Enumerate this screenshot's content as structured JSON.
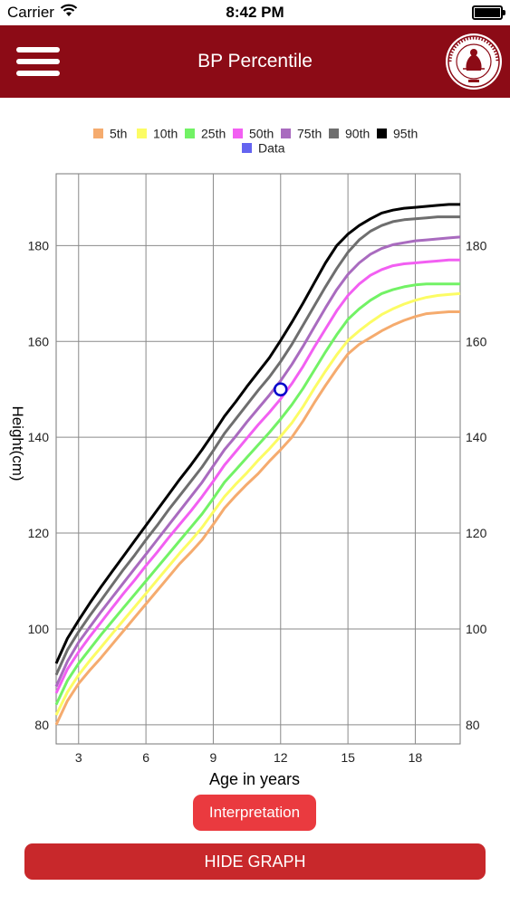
{
  "status_bar": {
    "carrier": "Carrier",
    "time": "8:42 PM"
  },
  "nav": {
    "title": "BP Percentile",
    "menu_icon": "hamburger-menu-icon",
    "logo": "philippine-pediatric-society-seal"
  },
  "colors": {
    "nav_bg": "#8c0b16",
    "interp_btn": "#ea3a3f",
    "hide_btn": "#c8282b"
  },
  "chart_data": {
    "type": "line",
    "title": "",
    "xlabel": "Age in years",
    "ylabel": "Height(cm)",
    "xlim": [
      2,
      20
    ],
    "ylim": [
      76,
      195
    ],
    "x_ticks": [
      3,
      6,
      9,
      12,
      15,
      18
    ],
    "y_ticks": [
      80,
      100,
      120,
      140,
      160,
      180
    ],
    "grid": true,
    "legend_position": "top",
    "x": [
      2,
      2.5,
      3,
      3.5,
      4,
      4.5,
      5,
      5.5,
      6,
      6.5,
      7,
      7.5,
      8,
      8.5,
      9,
      9.5,
      10,
      10.5,
      11,
      11.5,
      12,
      12.5,
      13,
      13.5,
      14,
      14.5,
      15,
      15.5,
      16,
      16.5,
      17,
      17.5,
      18,
      18.5,
      19,
      19.5,
      20
    ],
    "series": [
      {
        "name": "5th",
        "color": "#f5ab6e",
        "values": [
          80.0,
          85.0,
          88.6,
          91.4,
          94.0,
          96.8,
          99.6,
          102.4,
          105.2,
          108.0,
          110.8,
          113.6,
          116.0,
          118.6,
          121.8,
          125.2,
          127.8,
          130.2,
          132.4,
          135.0,
          137.4,
          140.0,
          143.4,
          147.2,
          150.8,
          154.2,
          157.4,
          159.4,
          160.8,
          162.2,
          163.4,
          164.4,
          165.2,
          165.8,
          166.0,
          166.2,
          166.2
        ]
      },
      {
        "name": "10th",
        "color": "#fcfc64",
        "values": [
          82.0,
          86.8,
          90.4,
          93.4,
          96.2,
          99.0,
          101.8,
          104.6,
          107.4,
          110.2,
          113.0,
          115.8,
          118.4,
          121.2,
          124.4,
          127.6,
          130.2,
          132.6,
          135.2,
          137.6,
          140.2,
          143.0,
          146.4,
          150.2,
          153.8,
          157.2,
          160.2,
          162.2,
          164.0,
          165.6,
          166.8,
          167.8,
          168.6,
          169.2,
          169.6,
          169.8,
          170.0
        ]
      },
      {
        "name": "25th",
        "color": "#72f265",
        "values": [
          84.2,
          89.2,
          92.8,
          95.8,
          98.8,
          101.6,
          104.4,
          107.2,
          110.0,
          112.8,
          115.6,
          118.4,
          121.2,
          124.0,
          127.2,
          130.6,
          133.2,
          135.8,
          138.4,
          141.0,
          143.8,
          146.8,
          150.2,
          154.0,
          157.8,
          161.4,
          164.6,
          166.8,
          168.6,
          170.0,
          170.8,
          171.4,
          171.8,
          172.0,
          172.0,
          172.0,
          172.0
        ]
      },
      {
        "name": "50th",
        "color": "#f25ff2",
        "values": [
          86.6,
          91.6,
          95.2,
          98.4,
          101.4,
          104.4,
          107.4,
          110.2,
          113.2,
          116.0,
          119.0,
          121.8,
          124.6,
          127.6,
          130.8,
          134.2,
          137.0,
          139.8,
          142.6,
          145.2,
          148.0,
          151.2,
          154.8,
          158.8,
          162.6,
          166.4,
          169.6,
          172.0,
          173.8,
          175.0,
          175.8,
          176.2,
          176.4,
          176.6,
          176.8,
          177.0,
          177.0
        ]
      },
      {
        "name": "75th",
        "color": "#a96bbf",
        "values": [
          88.0,
          93.2,
          97.2,
          100.4,
          103.6,
          106.6,
          109.6,
          112.6,
          115.6,
          118.6,
          121.6,
          124.6,
          127.6,
          130.6,
          134.0,
          137.4,
          140.2,
          143.2,
          146.0,
          148.8,
          151.8,
          155.2,
          159.0,
          163.0,
          167.0,
          170.8,
          174.0,
          176.4,
          178.2,
          179.4,
          180.2,
          180.6,
          181.0,
          181.2,
          181.4,
          181.6,
          181.8
        ]
      },
      {
        "name": "90th",
        "color": "#6e6e6e",
        "values": [
          90.4,
          95.6,
          99.4,
          102.8,
          106.0,
          109.2,
          112.4,
          115.4,
          118.6,
          121.6,
          124.8,
          127.8,
          130.8,
          133.8,
          137.2,
          140.8,
          143.8,
          146.8,
          149.8,
          152.6,
          155.8,
          159.4,
          163.4,
          167.4,
          171.4,
          175.2,
          178.6,
          181.2,
          183.0,
          184.2,
          185.0,
          185.4,
          185.6,
          185.8,
          186.0,
          186.0,
          186.0
        ]
      },
      {
        "name": "95th",
        "color": "#000000",
        "values": [
          92.8,
          98.0,
          101.8,
          105.4,
          108.8,
          112.0,
          115.2,
          118.4,
          121.6,
          124.8,
          128.0,
          131.2,
          134.2,
          137.4,
          140.8,
          144.4,
          147.4,
          150.6,
          153.6,
          156.6,
          160.2,
          164.0,
          168.0,
          172.2,
          176.4,
          180.0,
          182.4,
          184.2,
          185.6,
          186.8,
          187.4,
          187.8,
          188.0,
          188.2,
          188.4,
          188.6,
          188.6
        ]
      }
    ],
    "data_point": {
      "name": "Data",
      "color": "#6464f0",
      "marker_color": "#0000cc",
      "x": 12,
      "y": 150
    }
  },
  "buttons": {
    "interpretation": "Interpretation",
    "hide_graph": "HIDE GRAPH"
  }
}
